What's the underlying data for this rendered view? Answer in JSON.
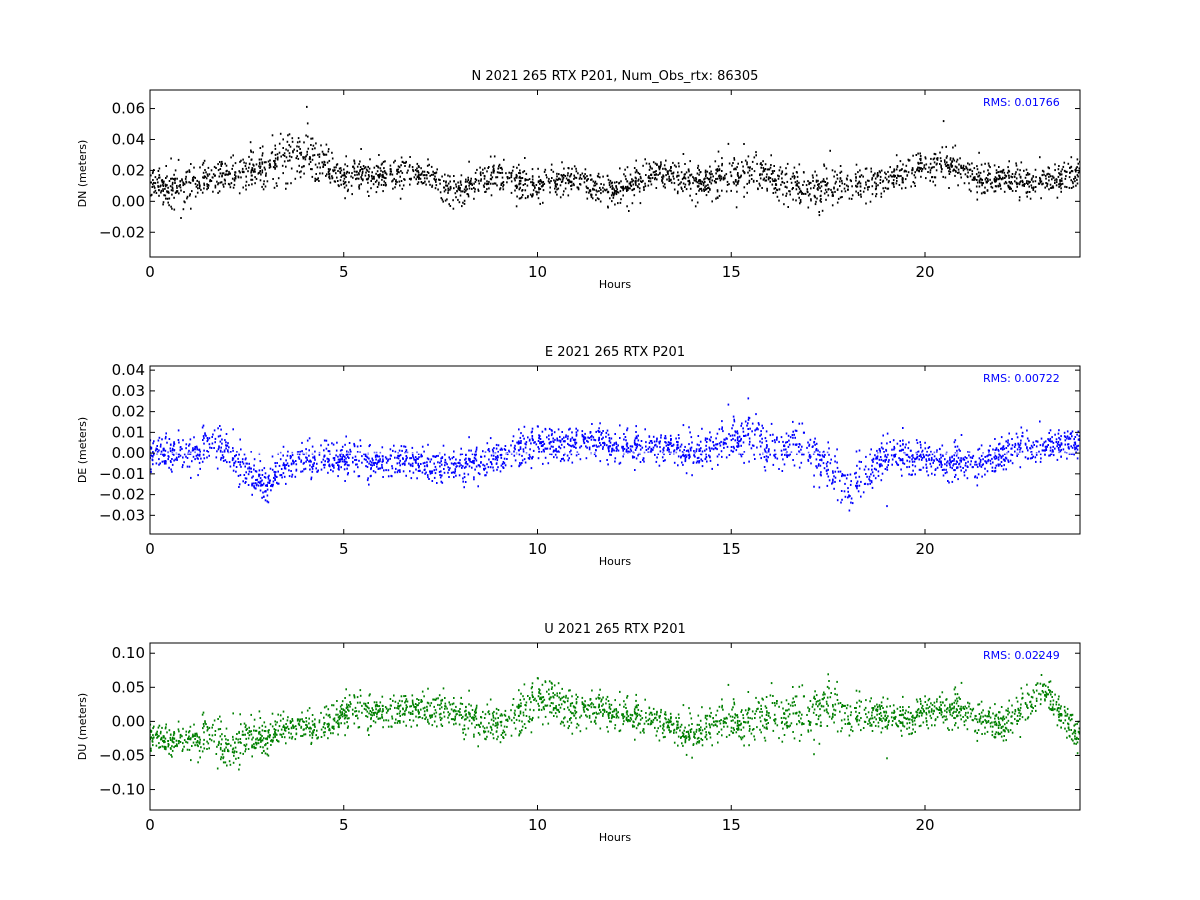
{
  "chart_data": [
    {
      "type": "scatter",
      "title": "N 2021 265 RTX  P201, Num_Obs_rtx: 86305",
      "xlabel": "Hours",
      "ylabel": "DN (meters)",
      "xlim": [
        0,
        24
      ],
      "ylim": [
        -0.036,
        0.072
      ],
      "x_ticks": [
        0,
        5,
        10,
        15,
        20
      ],
      "y_ticks": [
        -0.02,
        0.0,
        0.02,
        0.04,
        0.06
      ],
      "y_tick_labels": [
        "−0.02",
        "0.00",
        "0.02",
        "0.04",
        "0.06"
      ],
      "grid": false,
      "color": "#000000",
      "rms_text": "RMS:  0.01766",
      "series": [
        {
          "x": [
            0,
            0.5,
            1,
            1.5,
            2,
            2.5,
            3,
            3.5,
            4,
            4.5,
            5,
            5.5,
            6,
            6.5,
            7,
            7.5,
            8,
            8.5,
            9,
            9.5,
            10,
            10.5,
            11,
            11.5,
            12,
            12.5,
            13,
            13.5,
            14,
            14.5,
            15,
            15.5,
            16,
            16.5,
            17,
            17.5,
            18,
            18.5,
            19,
            19.5,
            20,
            20.5,
            21,
            21.5,
            22,
            22.5,
            23,
            23.5,
            24
          ],
          "y": [
            0.014,
            0.008,
            0.01,
            0.014,
            0.016,
            0.018,
            0.024,
            0.028,
            0.03,
            0.024,
            0.016,
            0.018,
            0.016,
            0.018,
            0.016,
            0.012,
            0.006,
            0.014,
            0.018,
            0.012,
            0.01,
            0.012,
            0.014,
            0.01,
            0.008,
            0.012,
            0.018,
            0.016,
            0.014,
            0.012,
            0.016,
            0.02,
            0.016,
            0.01,
            0.006,
            0.01,
            0.012,
            0.012,
            0.016,
            0.018,
            0.022,
            0.024,
            0.018,
            0.016,
            0.014,
            0.012,
            0.012,
            0.014,
            0.018
          ],
          "spread": [
            0.01,
            0.012,
            0.012,
            0.01,
            0.01,
            0.012,
            0.016,
            0.018,
            0.018,
            0.014,
            0.01,
            0.01,
            0.01,
            0.01,
            0.01,
            0.01,
            0.01,
            0.01,
            0.01,
            0.01,
            0.01,
            0.01,
            0.01,
            0.01,
            0.01,
            0.01,
            0.01,
            0.01,
            0.01,
            0.01,
            0.012,
            0.014,
            0.012,
            0.012,
            0.014,
            0.012,
            0.01,
            0.01,
            0.01,
            0.01,
            0.012,
            0.012,
            0.01,
            0.01,
            0.01,
            0.01,
            0.01,
            0.01,
            0.012
          ]
        }
      ]
    },
    {
      "type": "scatter",
      "title": "E 2021 265 RTX  P201",
      "xlabel": "Hours",
      "ylabel": "DE (meters)",
      "xlim": [
        0,
        24
      ],
      "ylim": [
        -0.039,
        0.042
      ],
      "x_ticks": [
        0,
        5,
        10,
        15,
        20
      ],
      "y_ticks": [
        -0.03,
        -0.02,
        -0.01,
        0.0,
        0.01,
        0.02,
        0.03,
        0.04
      ],
      "y_tick_labels": [
        "−0.03",
        "−0.02",
        "−0.01",
        "0.00",
        "0.01",
        "0.02",
        "0.03",
        "0.04"
      ],
      "grid": false,
      "color": "#0000ff",
      "rms_text": "RMS:  0.00722",
      "series": [
        {
          "x": [
            0,
            0.5,
            1,
            1.5,
            2,
            2.5,
            3,
            3.5,
            4,
            4.5,
            5,
            5.5,
            6,
            6.5,
            7,
            7.5,
            8,
            8.5,
            9,
            9.5,
            10,
            10.5,
            11,
            11.5,
            12,
            12.5,
            13,
            13.5,
            14,
            14.5,
            15,
            15.5,
            16,
            16.5,
            17,
            17.5,
            18,
            18.5,
            19,
            19.5,
            20,
            20.5,
            21,
            21.5,
            22,
            22.5,
            23,
            23.5,
            24
          ],
          "y": [
            0.0,
            0.0,
            -0.002,
            0.004,
            0.002,
            -0.008,
            -0.014,
            -0.006,
            -0.004,
            -0.002,
            -0.002,
            -0.004,
            -0.004,
            -0.002,
            -0.006,
            -0.006,
            -0.006,
            -0.004,
            -0.002,
            0.002,
            0.004,
            0.004,
            0.004,
            0.006,
            0.004,
            0.002,
            0.002,
            0.002,
            0.0,
            0.002,
            0.006,
            0.01,
            0.002,
            0.004,
            0.0,
            -0.006,
            -0.016,
            -0.01,
            0.0,
            -0.002,
            -0.002,
            -0.004,
            -0.006,
            -0.002,
            -0.002,
            0.002,
            0.002,
            0.004,
            0.006
          ],
          "spread": [
            0.008,
            0.008,
            0.008,
            0.01,
            0.01,
            0.01,
            0.01,
            0.008,
            0.008,
            0.008,
            0.008,
            0.008,
            0.008,
            0.008,
            0.008,
            0.008,
            0.008,
            0.008,
            0.008,
            0.008,
            0.008,
            0.008,
            0.008,
            0.008,
            0.008,
            0.008,
            0.008,
            0.008,
            0.008,
            0.008,
            0.01,
            0.012,
            0.01,
            0.01,
            0.01,
            0.01,
            0.012,
            0.012,
            0.01,
            0.01,
            0.008,
            0.008,
            0.008,
            0.008,
            0.008,
            0.008,
            0.008,
            0.008,
            0.008
          ]
        }
      ]
    },
    {
      "type": "scatter",
      "title": "U 2021 265 RTX  P201",
      "xlabel": "Hours",
      "ylabel": "DU (meters)",
      "xlim": [
        0,
        24
      ],
      "ylim": [
        -0.13,
        0.115
      ],
      "x_ticks": [
        0,
        5,
        10,
        15,
        20
      ],
      "y_ticks": [
        -0.1,
        -0.05,
        0.0,
        0.05,
        0.1
      ],
      "y_tick_labels": [
        "−0.10",
        "−0.05",
        "0.00",
        "0.05",
        "0.10"
      ],
      "grid": false,
      "color": "#008000",
      "rms_text": "RMS:  0.02249",
      "series": [
        {
          "x": [
            0,
            0.5,
            1,
            1.5,
            2,
            2.5,
            3,
            3.5,
            4,
            4.5,
            5,
            5.5,
            6,
            6.5,
            7,
            7.5,
            8,
            8.5,
            9,
            9.5,
            10,
            10.5,
            11,
            11.5,
            12,
            12.5,
            13,
            13.5,
            14,
            14.5,
            15,
            15.5,
            16,
            16.5,
            17,
            17.5,
            18,
            18.5,
            19,
            19.5,
            20,
            20.5,
            21,
            21.5,
            22,
            22.5,
            23,
            23.5,
            24
          ],
          "y": [
            -0.02,
            -0.03,
            -0.03,
            -0.02,
            -0.04,
            -0.02,
            -0.02,
            -0.01,
            -0.01,
            -0.005,
            0.015,
            0.015,
            0.015,
            0.02,
            0.015,
            0.02,
            0.01,
            0.0,
            -0.005,
            0.01,
            0.03,
            0.03,
            0.01,
            0.02,
            0.015,
            0.005,
            0.0,
            -0.01,
            -0.02,
            -0.005,
            0.0,
            0.0,
            0.015,
            0.01,
            0.0,
            0.03,
            0.01,
            0.01,
            0.01,
            0.0,
            0.015,
            0.02,
            0.01,
            0.01,
            -0.01,
            0.01,
            0.05,
            0.01,
            -0.02
          ],
          "spread": [
            0.02,
            0.02,
            0.02,
            0.035,
            0.04,
            0.03,
            0.03,
            0.02,
            0.02,
            0.025,
            0.025,
            0.025,
            0.025,
            0.025,
            0.025,
            0.025,
            0.025,
            0.025,
            0.03,
            0.03,
            0.03,
            0.03,
            0.03,
            0.025,
            0.025,
            0.025,
            0.025,
            0.025,
            0.025,
            0.025,
            0.03,
            0.03,
            0.035,
            0.035,
            0.04,
            0.035,
            0.03,
            0.03,
            0.025,
            0.025,
            0.025,
            0.025,
            0.025,
            0.025,
            0.025,
            0.03,
            0.03,
            0.025,
            0.03
          ]
        }
      ]
    }
  ]
}
